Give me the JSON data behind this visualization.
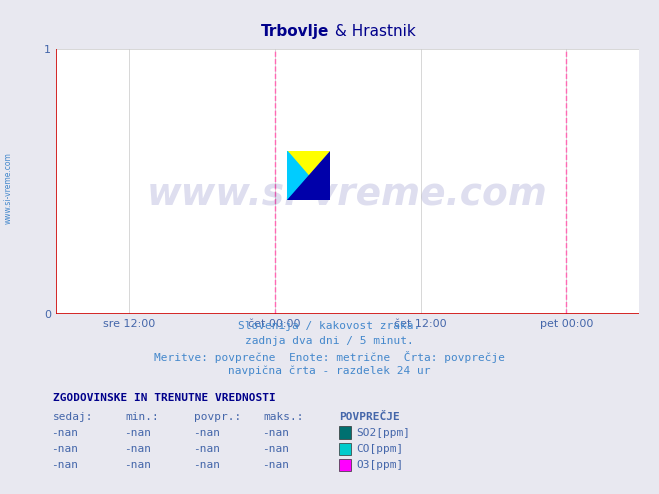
{
  "title_bold": "Trbovlje",
  "title_normal": " & Hrastnik",
  "title_color": "#00008B",
  "background_color": "#e8e8f0",
  "plot_bg_color": "#ffffff",
  "xlim": [
    0,
    576
  ],
  "ylim": [
    0,
    1
  ],
  "yticks": [
    0,
    1
  ],
  "xtick_labels": [
    "sre 12:00",
    "čet 00:00",
    "čet 12:00",
    "pet 00:00"
  ],
  "xtick_positions": [
    72,
    216,
    360,
    504
  ],
  "grid_color": "#c8c8c8",
  "vline_positions": [
    216,
    504
  ],
  "vline_color": "#ff69b4",
  "axis_color": "#cc0000",
  "tick_color": "#4466aa",
  "watermark_text": "www.si-vreme.com",
  "watermark_color": "#00008B",
  "subtitle_lines": [
    "Slovenija / kakovost zraka.",
    "zadnja dva dni / 5 minut.",
    "Meritve: povprečne  Enote: metrične  Črta: povprečje",
    "navpična črta - razdelek 24 ur"
  ],
  "subtitle_color": "#4488cc",
  "table_header": "ZGODOVINSKE IN TRENUTNE VREDNOSTI",
  "table_header_color": "#00008B",
  "col_headers": [
    "sedaj:",
    "min.:",
    "povpr.:",
    "maks.:",
    "POVPREČJE"
  ],
  "rows": [
    [
      "-nan",
      "-nan",
      "-nan",
      "-nan",
      "SO2[ppm]",
      "#007070"
    ],
    [
      "-nan",
      "-nan",
      "-nan",
      "-nan",
      "CO[ppm]",
      "#00cccc"
    ],
    [
      "-nan",
      "-nan",
      "-nan",
      "-nan",
      "O3[ppm]",
      "#ff00ff"
    ]
  ],
  "side_text": "www.si-vreme.com",
  "side_text_color": "#4488cc"
}
